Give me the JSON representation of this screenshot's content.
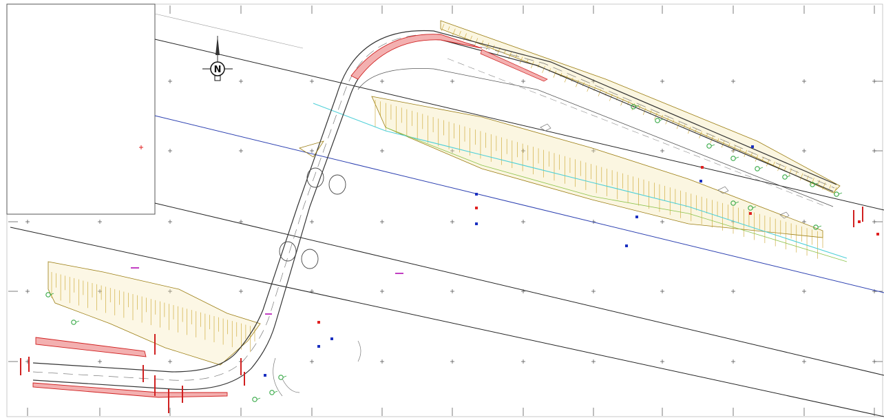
{
  "drawing": {
    "north_arrow": {
      "label": "N"
    },
    "colors": {
      "road_edge": "#333333",
      "center_line": "#777777",
      "alignment_line": "#222222",
      "blue_line": "#2b3fb0",
      "slope_hatch": "#c9a227",
      "slope_outline": "#9a7c10",
      "red_hatch": "#d02020",
      "vegetation": "#34a844",
      "water_line": "#4fd0d8",
      "grid_tick": "#444444",
      "marker_red": "#e02020",
      "marker_blue": "#1a2fc0",
      "magenta": "#c23ec2"
    }
  }
}
